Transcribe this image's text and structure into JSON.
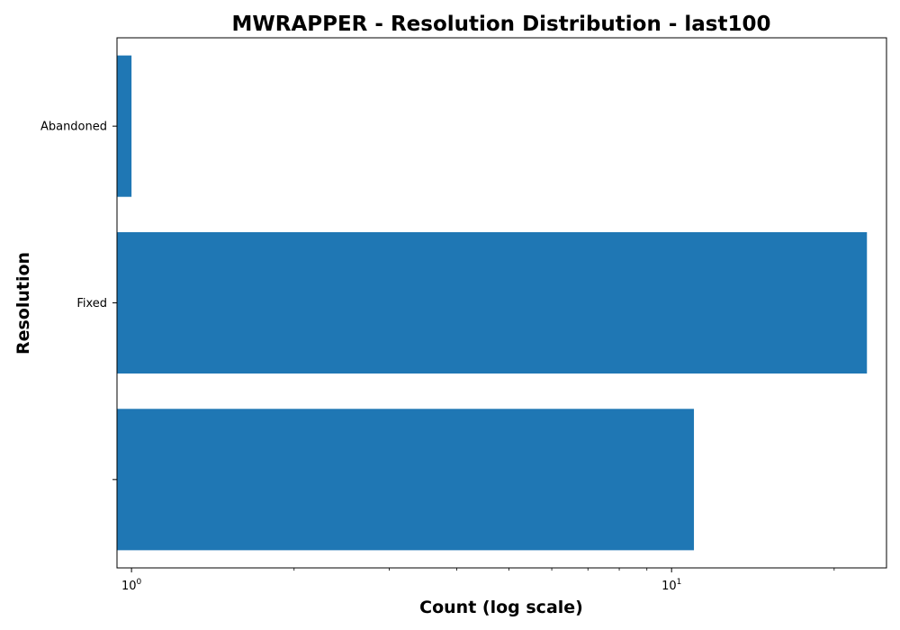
{
  "chart_data": {
    "type": "bar",
    "orientation": "horizontal",
    "title": "MWRAPPER - Resolution Distribution - last100",
    "xlabel": "Count (log scale)",
    "ylabel": "Resolution",
    "x_scale": "log",
    "xlim": [
      0.94,
      25
    ],
    "x_ticks": [
      {
        "value": 1,
        "base": "10",
        "exp": "0"
      },
      {
        "value": 10,
        "base": "10",
        "exp": "1"
      }
    ],
    "categories": [
      "Abandoned",
      "Fixed",
      ""
    ],
    "values": [
      1,
      23,
      11
    ],
    "bar_color": "#1f77b4",
    "grid": false,
    "legend": "none"
  }
}
